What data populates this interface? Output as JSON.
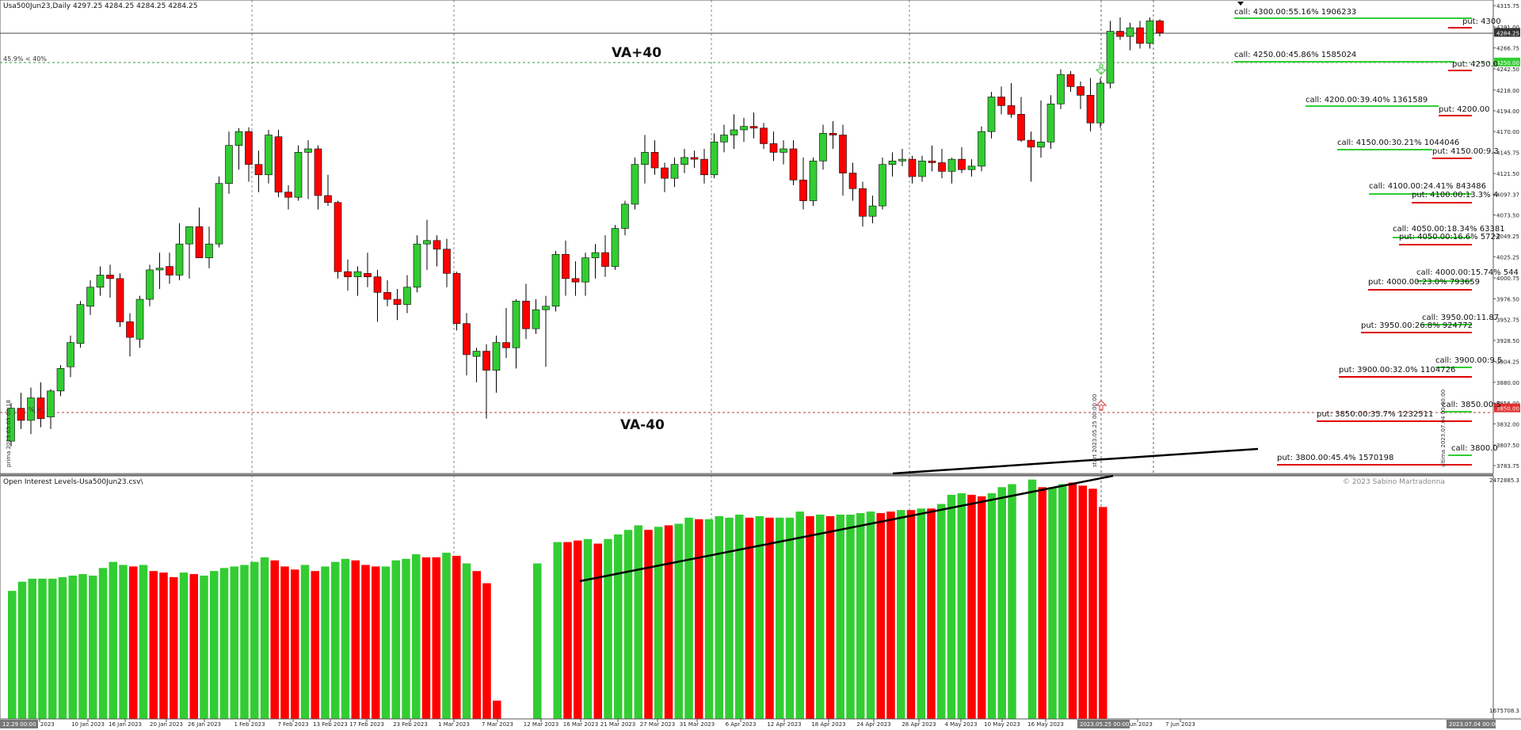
{
  "header": {
    "main_title": "Usa500Jun23,Daily  4297.25 4284.25 4284.25 4284.25",
    "indicator_title": "Open Interest Levels-Usa500Jun23.csv\\",
    "copyright": "© 2023 Sabino Martradonna"
  },
  "colors": {
    "bull": "#32cd32",
    "bear": "#ff0000",
    "call_line": "#32cd32",
    "put_line": "#e00000",
    "va_line": "#3a9a3a",
    "grid": "#777777",
    "text": "#111111"
  },
  "labels": {
    "va_plus": "VA+40",
    "va_minus": "VA-40",
    "va_note": "45.9% < 40%",
    "vline_note": "start 2023.05.25 00:00:00",
    "left_vertical": "prima 2023.05.05 00:18",
    "right_vertical": "ultima 2023.07.04 00:00:00",
    "va_minus_note": "% <"
  },
  "price_axis": {
    "ticks": [
      "4315.75",
      "4291.00",
      "4266.75",
      "4242.50",
      "4218.00",
      "4194.00",
      "4170.00",
      "4145.75",
      "4121.50",
      "4097.37",
      "4073.50",
      "4049.25",
      "4025.25",
      "4000.75",
      "3976.50",
      "3952.75",
      "3928.50",
      "3904.25",
      "3880.00",
      "3856.00",
      "3832.00",
      "3807.50",
      "3783.75"
    ],
    "current_price": "4284.25",
    "va_price_upper": "4250.00",
    "va_price_lower": "3850.00"
  },
  "indicator_axis": {
    "top": "2472885.3",
    "bottom": "1675708.3"
  },
  "time_axis": {
    "labels": [
      "4 Jan 2023",
      "10 Jan 2023",
      "16 Jan 2023",
      "20 Jan 2023",
      "26 Jan 2023",
      "1 Feb 2023",
      "7 Feb 2023",
      "13 Feb 2023",
      "17 Feb 2023",
      "23 Feb 2023",
      "1 Mar 2023",
      "7 Mar 2023",
      "12 Mar 2023",
      "16 Mar 2023",
      "21 Mar 2023",
      "27 Mar 2023",
      "31 Mar 2023",
      "6 Apr 2023",
      "12 Apr 2023",
      "18 Apr 2023",
      "24 Apr 2023",
      "28 Apr 2023",
      "4 May 2023",
      "10 May 2023",
      "16 May 2023",
      "1 Jun 2023",
      "7 Jun 2023"
    ],
    "start_badge": "12.29 00:00",
    "mid_badge": "2023.05.25 00:00",
    "end_badge": "2023.07.04 00:00"
  },
  "oi_levels": [
    {
      "side": "call",
      "text": "call: 4300.00:55.16% 1906233"
    },
    {
      "side": "put",
      "text": "put: 4300"
    },
    {
      "side": "call",
      "text": "call: 4250.00:45.86% 1585024"
    },
    {
      "side": "put",
      "text": "put: 4250.0"
    },
    {
      "side": "call",
      "text": "call: 4200.00:39.40% 1361589"
    },
    {
      "side": "put",
      "text": "put: 4200.00"
    },
    {
      "side": "call",
      "text": "call: 4150.00:30.21% 1044046"
    },
    {
      "side": "put",
      "text": "put: 4150.00:9.3"
    },
    {
      "side": "call",
      "text": "call: 4100.00:24.41% 843486"
    },
    {
      "side": "put",
      "text": "put: 4100.00:13.3% 4"
    },
    {
      "side": "call",
      "text": "call: 4050.00:18.34% 63381"
    },
    {
      "side": "put",
      "text": "put: 4050.00:16.6% 5722"
    },
    {
      "side": "call",
      "text": "call: 4000.00:15.74% 544"
    },
    {
      "side": "put",
      "text": "put: 4000.00:23.0% 793659"
    },
    {
      "side": "call",
      "text": "call: 3950.00:11.87"
    },
    {
      "side": "put",
      "text": "put: 3950.00:26.8% 924772"
    },
    {
      "side": "call",
      "text": "call: 3900.00:9.5"
    },
    {
      "side": "put",
      "text": "put: 3900.00:32.0% 1104726"
    },
    {
      "side": "call",
      "text": "call: 3850.00:5"
    },
    {
      "side": "put",
      "text": "put: 3850.00:35.7% 1232511"
    },
    {
      "side": "call",
      "text": "call: 3800.0"
    },
    {
      "side": "put",
      "text": "put: 3800.00:45.4% 1570198"
    }
  ],
  "chart_data": {
    "type": "candlestick",
    "series_ohlc": [
      [
        3812,
        3856,
        3806,
        3850
      ],
      [
        3850,
        3868,
        3826,
        3836
      ],
      [
        3836,
        3874,
        3820,
        3862
      ],
      [
        3862,
        3880,
        3828,
        3838
      ],
      [
        3840,
        3872,
        3826,
        3870
      ],
      [
        3870,
        3900,
        3864,
        3896
      ],
      [
        3898,
        3934,
        3886,
        3926
      ],
      [
        3925,
        3974,
        3920,
        3970
      ],
      [
        3968,
        3998,
        3958,
        3990
      ],
      [
        3990,
        4014,
        3980,
        4004
      ],
      [
        4004,
        4016,
        3978,
        4000
      ],
      [
        4000,
        4006,
        3944,
        3950
      ],
      [
        3950,
        3960,
        3910,
        3932
      ],
      [
        3930,
        3980,
        3920,
        3976
      ],
      [
        3976,
        4016,
        3968,
        4010
      ],
      [
        4010,
        4030,
        3988,
        4012
      ],
      [
        4014,
        4030,
        3994,
        4004
      ],
      [
        4004,
        4064,
        3998,
        4040
      ],
      [
        4040,
        4060,
        4000,
        4060
      ],
      [
        4060,
        4082,
        4030,
        4024
      ],
      [
        4024,
        4060,
        4012,
        4040
      ],
      [
        4040,
        4118,
        4036,
        4110
      ],
      [
        4110,
        4170,
        4098,
        4154
      ],
      [
        4154,
        4174,
        4126,
        4170
      ],
      [
        4170,
        4175,
        4112,
        4132
      ],
      [
        4132,
        4148,
        4100,
        4120
      ],
      [
        4120,
        4172,
        4110,
        4166
      ],
      [
        4164,
        4172,
        4094,
        4100
      ],
      [
        4100,
        4108,
        4080,
        4094
      ],
      [
        4094,
        4154,
        4090,
        4146
      ],
      [
        4146,
        4160,
        4092,
        4150
      ],
      [
        4150,
        4154,
        4080,
        4096
      ],
      [
        4096,
        4120,
        4084,
        4088
      ],
      [
        4088,
        4090,
        4000,
        4008
      ],
      [
        4008,
        4022,
        3986,
        4002
      ],
      [
        4002,
        4014,
        3980,
        4008
      ],
      [
        4006,
        4030,
        3990,
        4002
      ],
      [
        4002,
        4010,
        3950,
        3984
      ],
      [
        3984,
        3998,
        3968,
        3976
      ],
      [
        3976,
        3988,
        3952,
        3970
      ],
      [
        3970,
        4004,
        3960,
        3990
      ],
      [
        3990,
        4050,
        3984,
        4040
      ],
      [
        4040,
        4068,
        4010,
        4044
      ],
      [
        4044,
        4050,
        4014,
        4034
      ],
      [
        4034,
        4046,
        3990,
        4006
      ],
      [
        4006,
        4008,
        3940,
        3948
      ],
      [
        3948,
        3960,
        3888,
        3912
      ],
      [
        3910,
        3920,
        3880,
        3916
      ],
      [
        3916,
        3924,
        3838,
        3894
      ],
      [
        3894,
        3934,
        3868,
        3926
      ],
      [
        3926,
        3966,
        3908,
        3920
      ],
      [
        3920,
        3976,
        3896,
        3974
      ],
      [
        3974,
        3994,
        3930,
        3942
      ],
      [
        3942,
        3976,
        3936,
        3964
      ],
      [
        3964,
        3980,
        3898,
        3968
      ],
      [
        3968,
        4032,
        3962,
        4028
      ],
      [
        4028,
        4044,
        3980,
        4000
      ],
      [
        4000,
        4020,
        3980,
        3996
      ],
      [
        3996,
        4030,
        3980,
        4024
      ],
      [
        4024,
        4040,
        4000,
        4030
      ],
      [
        4030,
        4050,
        4002,
        4014
      ],
      [
        4014,
        4062,
        4010,
        4058
      ],
      [
        4058,
        4090,
        4050,
        4086
      ],
      [
        4086,
        4140,
        4080,
        4132
      ],
      [
        4132,
        4166,
        4110,
        4146
      ],
      [
        4146,
        4160,
        4120,
        4128
      ],
      [
        4128,
        4134,
        4100,
        4116
      ],
      [
        4116,
        4140,
        4106,
        4132
      ],
      [
        4132,
        4150,
        4122,
        4140
      ],
      [
        4140,
        4148,
        4128,
        4138
      ],
      [
        4138,
        4150,
        4110,
        4120
      ],
      [
        4120,
        4168,
        4116,
        4158
      ],
      [
        4158,
        4178,
        4146,
        4166
      ],
      [
        4166,
        4190,
        4150,
        4172
      ],
      [
        4172,
        4186,
        4158,
        4176
      ],
      [
        4176,
        4192,
        4162,
        4174
      ],
      [
        4174,
        4180,
        4150,
        4156
      ],
      [
        4156,
        4170,
        4136,
        4146
      ],
      [
        4146,
        4160,
        4132,
        4150
      ],
      [
        4150,
        4160,
        4108,
        4114
      ],
      [
        4114,
        4140,
        4080,
        4090
      ],
      [
        4090,
        4140,
        4084,
        4136
      ],
      [
        4136,
        4178,
        4126,
        4168
      ],
      [
        4168,
        4182,
        4150,
        4166
      ],
      [
        4166,
        4178,
        4096,
        4122
      ],
      [
        4122,
        4134,
        4090,
        4104
      ],
      [
        4104,
        4112,
        4060,
        4072
      ],
      [
        4072,
        4096,
        4064,
        4084
      ],
      [
        4084,
        4140,
        4080,
        4132
      ],
      [
        4132,
        4146,
        4118,
        4136
      ],
      [
        4136,
        4150,
        4130,
        4138
      ],
      [
        4138,
        4142,
        4110,
        4118
      ],
      [
        4118,
        4142,
        4112,
        4136
      ],
      [
        4136,
        4154,
        4124,
        4134
      ],
      [
        4134,
        4150,
        4116,
        4124
      ],
      [
        4124,
        4140,
        4110,
        4138
      ],
      [
        4138,
        4152,
        4122,
        4126
      ],
      [
        4126,
        4138,
        4118,
        4130
      ],
      [
        4130,
        4176,
        4124,
        4170
      ],
      [
        4170,
        4216,
        4162,
        4210
      ],
      [
        4210,
        4222,
        4190,
        4200
      ],
      [
        4200,
        4226,
        4186,
        4190
      ],
      [
        4190,
        4210,
        4158,
        4160
      ],
      [
        4160,
        4170,
        4112,
        4152
      ],
      [
        4152,
        4206,
        4140,
        4158
      ],
      [
        4158,
        4212,
        4150,
        4202
      ],
      [
        4202,
        4242,
        4196,
        4236
      ],
      [
        4236,
        4240,
        4216,
        4222
      ],
      [
        4222,
        4228,
        4196,
        4212
      ],
      [
        4212,
        4232,
        4170,
        4180
      ],
      [
        4180,
        4232,
        4174,
        4226
      ],
      [
        4226,
        4298,
        4220,
        4286
      ],
      [
        4286,
        4302,
        4276,
        4280
      ],
      [
        4280,
        4296,
        4264,
        4290
      ],
      [
        4290,
        4298,
        4266,
        4272
      ],
      [
        4272,
        4302,
        4266,
        4298
      ],
      [
        4298,
        4300,
        4280,
        4284
      ]
    ],
    "oi_volume": [
      {
        "c": "g",
        "v": 2100
      },
      {
        "c": "g",
        "v": 2130
      },
      {
        "c": "g",
        "v": 2140
      },
      {
        "c": "g",
        "v": 2140
      },
      {
        "c": "g",
        "v": 2140
      },
      {
        "c": "g",
        "v": 2145
      },
      {
        "c": "g",
        "v": 2150
      },
      {
        "c": "g",
        "v": 2155
      },
      {
        "c": "g",
        "v": 2150
      },
      {
        "c": "g",
        "v": 2175
      },
      {
        "c": "g",
        "v": 2195
      },
      {
        "c": "g",
        "v": 2185
      },
      {
        "c": "r",
        "v": 2180
      },
      {
        "c": "g",
        "v": 2185
      },
      {
        "c": "r",
        "v": 2165
      },
      {
        "c": "r",
        "v": 2160
      },
      {
        "c": "r",
        "v": 2145
      },
      {
        "c": "g",
        "v": 2160
      },
      {
        "c": "r",
        "v": 2155
      },
      {
        "c": "g",
        "v": 2150
      },
      {
        "c": "g",
        "v": 2165
      },
      {
        "c": "g",
        "v": 2175
      },
      {
        "c": "g",
        "v": 2180
      },
      {
        "c": "g",
        "v": 2185
      },
      {
        "c": "g",
        "v": 2195
      },
      {
        "c": "g",
        "v": 2210
      },
      {
        "c": "r",
        "v": 2200
      },
      {
        "c": "r",
        "v": 2180
      },
      {
        "c": "r",
        "v": 2170
      },
      {
        "c": "g",
        "v": 2185
      },
      {
        "c": "r",
        "v": 2165
      },
      {
        "c": "g",
        "v": 2180
      },
      {
        "c": "g",
        "v": 2195
      },
      {
        "c": "g",
        "v": 2205
      },
      {
        "c": "r",
        "v": 2200
      },
      {
        "c": "r",
        "v": 2185
      },
      {
        "c": "r",
        "v": 2180
      },
      {
        "c": "g",
        "v": 2180
      },
      {
        "c": "g",
        "v": 2200
      },
      {
        "c": "g",
        "v": 2205
      },
      {
        "c": "g",
        "v": 2220
      },
      {
        "c": "r",
        "v": 2210
      },
      {
        "c": "r",
        "v": 2210
      },
      {
        "c": "g",
        "v": 2225
      },
      {
        "c": "r",
        "v": 2215
      },
      {
        "c": "g",
        "v": 2190
      },
      {
        "c": "r",
        "v": 2165
      },
      {
        "c": "r",
        "v": 2125
      },
      {
        "c": "r",
        "v": 1740
      },
      {
        "c": "n",
        "v": 0
      },
      {
        "c": "n",
        "v": 0
      },
      {
        "c": "n",
        "v": 0
      },
      {
        "c": "g",
        "v": 2190
      },
      {
        "c": "n",
        "v": 0
      },
      {
        "c": "g",
        "v": 2260
      },
      {
        "c": "r",
        "v": 2260
      },
      {
        "c": "r",
        "v": 2265
      },
      {
        "c": "g",
        "v": 2270
      },
      {
        "c": "r",
        "v": 2255
      },
      {
        "c": "g",
        "v": 2270
      },
      {
        "c": "g",
        "v": 2285
      },
      {
        "c": "g",
        "v": 2300
      },
      {
        "c": "g",
        "v": 2315
      },
      {
        "c": "r",
        "v": 2300
      },
      {
        "c": "g",
        "v": 2310
      },
      {
        "c": "r",
        "v": 2315
      },
      {
        "c": "g",
        "v": 2320
      },
      {
        "c": "g",
        "v": 2340
      },
      {
        "c": "r",
        "v": 2335
      },
      {
        "c": "g",
        "v": 2335
      },
      {
        "c": "g",
        "v": 2345
      },
      {
        "c": "g",
        "v": 2340
      },
      {
        "c": "g",
        "v": 2350
      },
      {
        "c": "r",
        "v": 2340
      },
      {
        "c": "g",
        "v": 2345
      },
      {
        "c": "r",
        "v": 2340
      },
      {
        "c": "g",
        "v": 2340
      },
      {
        "c": "g",
        "v": 2340
      },
      {
        "c": "g",
        "v": 2360
      },
      {
        "c": "r",
        "v": 2345
      },
      {
        "c": "g",
        "v": 2350
      },
      {
        "c": "r",
        "v": 2345
      },
      {
        "c": "g",
        "v": 2350
      },
      {
        "c": "g",
        "v": 2350
      },
      {
        "c": "g",
        "v": 2355
      },
      {
        "c": "g",
        "v": 2360
      },
      {
        "c": "r",
        "v": 2355
      },
      {
        "c": "r",
        "v": 2360
      },
      {
        "c": "g",
        "v": 2365
      },
      {
        "c": "r",
        "v": 2365
      },
      {
        "c": "g",
        "v": 2370
      },
      {
        "c": "r",
        "v": 2370
      },
      {
        "c": "g",
        "v": 2385
      },
      {
        "c": "g",
        "v": 2415
      },
      {
        "c": "g",
        "v": 2420
      },
      {
        "c": "r",
        "v": 2415
      },
      {
        "c": "r",
        "v": 2410
      },
      {
        "c": "g",
        "v": 2420
      },
      {
        "c": "g",
        "v": 2440
      },
      {
        "c": "g",
        "v": 2450
      },
      {
        "c": "n",
        "v": 0
      },
      {
        "c": "g",
        "v": 2465
      },
      {
        "c": "r",
        "v": 2440
      },
      {
        "c": "g",
        "v": 2440
      },
      {
        "c": "g",
        "v": 2450
      },
      {
        "c": "r",
        "v": 2455
      },
      {
        "c": "r",
        "v": 2445
      },
      {
        "c": "r",
        "v": 2435
      },
      {
        "c": "r",
        "v": 2375
      }
    ]
  }
}
